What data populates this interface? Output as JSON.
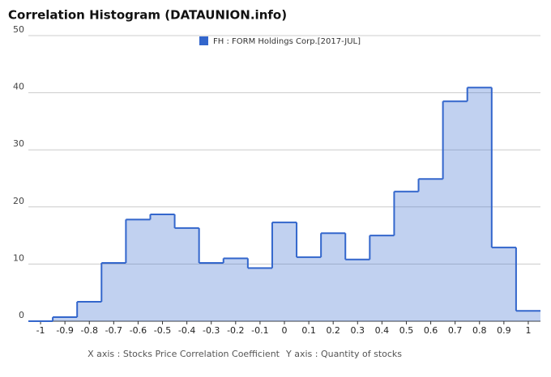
{
  "chart_data": {
    "type": "step-area",
    "title": "Correlation Histogram (DATAUNION.info)",
    "x": [
      -1,
      -0.9,
      -0.8,
      -0.7,
      -0.6,
      -0.5,
      -0.4,
      -0.3,
      -0.2,
      -0.1,
      0,
      0.1,
      0.2,
      0.3,
      0.4,
      0.5,
      0.6,
      0.7,
      0.8,
      0.9,
      1
    ],
    "series": [
      {
        "name": "FH : FORM Holdings Corp.[2017-JUL]",
        "color": "#3366cc",
        "values": [
          0,
          0.7,
          3.4,
          10.2,
          17.8,
          18.7,
          16.3,
          10.2,
          11,
          9.3,
          17.3,
          11.2,
          15.4,
          10.8,
          15,
          22.7,
          24.9,
          38.5,
          40.9,
          12.9,
          1.8
        ]
      }
    ],
    "xlim": [
      -1.05,
      1.05
    ],
    "xticks": [
      -1,
      -0.9,
      -0.8,
      -0.7,
      -0.6,
      -0.5,
      -0.4,
      -0.3,
      -0.2,
      -0.1,
      0,
      0.1,
      0.2,
      0.3,
      0.4,
      0.5,
      0.6,
      0.7,
      0.8,
      0.9,
      1
    ],
    "ylim": [
      0,
      50
    ],
    "yticks": [
      0,
      10,
      20,
      30,
      40,
      50
    ],
    "grid": true,
    "x_label": "X axis : Stocks Price Correlation Coefficient",
    "y_label": "Y axis : Quantity of stocks"
  }
}
